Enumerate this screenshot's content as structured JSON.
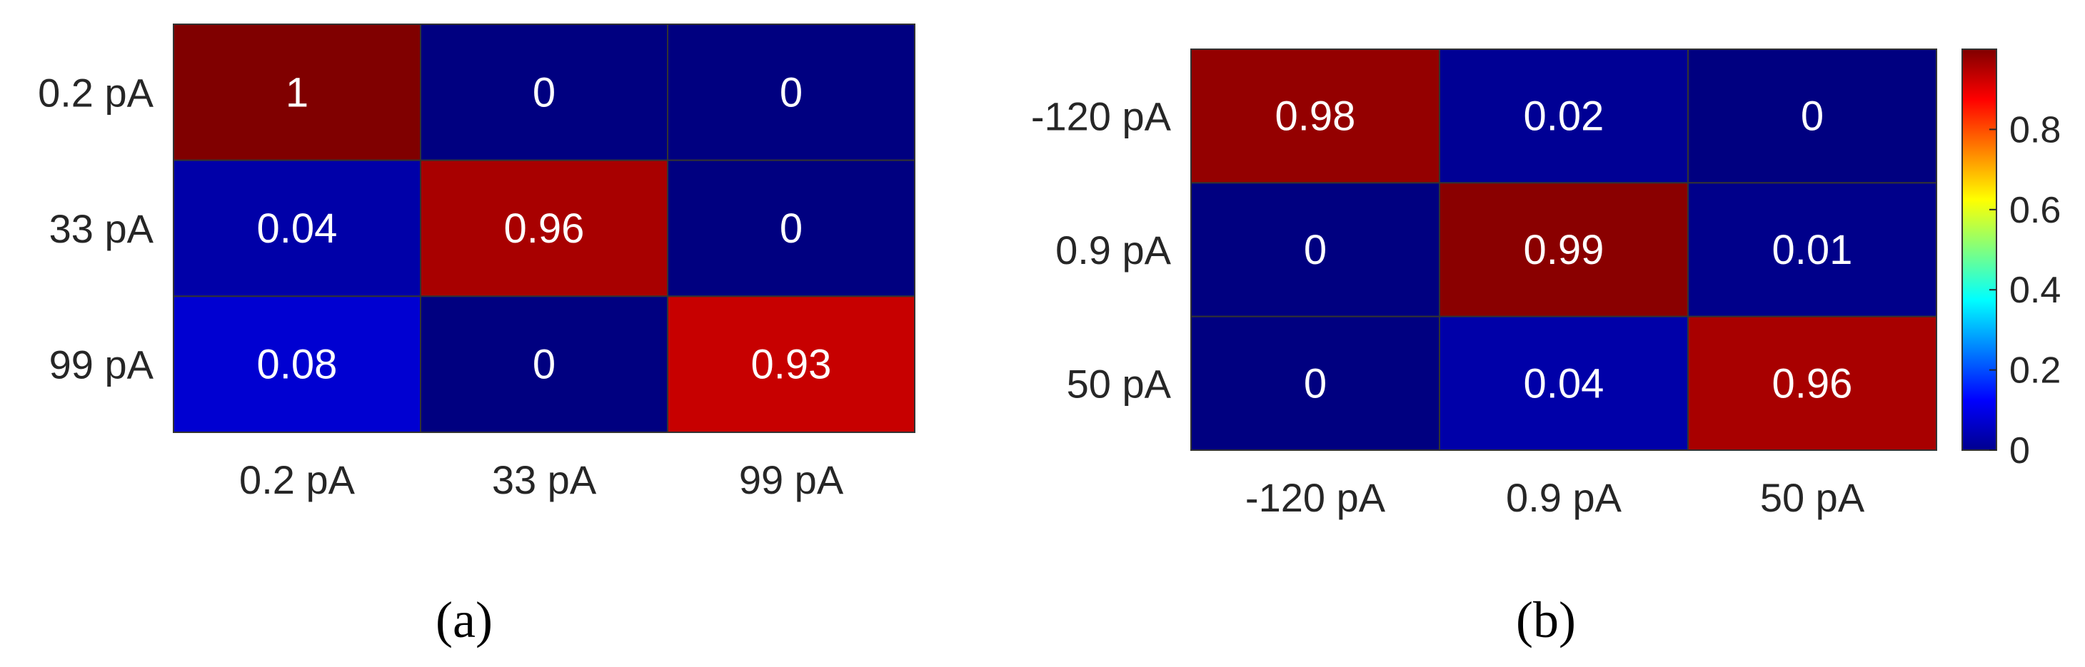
{
  "chart_data": [
    {
      "type": "heatmap",
      "panel_label": "(a)",
      "rows": [
        "0.2 pA",
        "33 pA",
        "99 pA"
      ],
      "columns": [
        "0.2 pA",
        "33 pA",
        "99 pA"
      ],
      "values": [
        [
          1,
          0,
          0
        ],
        [
          0.04,
          0.96,
          0
        ],
        [
          0.08,
          0,
          0.93
        ]
      ],
      "value_labels": [
        [
          "1",
          "0",
          "0"
        ],
        [
          "0.04",
          "0.96",
          "0"
        ],
        [
          "0.08",
          "0",
          "0.93"
        ]
      ],
      "colormap": "jet",
      "clim": [
        0,
        1
      ]
    },
    {
      "type": "heatmap",
      "panel_label": "(b)",
      "rows": [
        "-120 pA",
        "0.9 pA",
        "50 pA"
      ],
      "columns": [
        "-120 pA",
        "0.9 pA",
        "50 pA"
      ],
      "values": [
        [
          0.98,
          0.02,
          0
        ],
        [
          0,
          0.99,
          0.01
        ],
        [
          0,
          0.04,
          0.96
        ]
      ],
      "value_labels": [
        [
          "0.98",
          "0.02",
          "0"
        ],
        [
          "0",
          "0.99",
          "0.01"
        ],
        [
          "0",
          "0.04",
          "0.96"
        ]
      ],
      "colormap": "jet",
      "clim": [
        0,
        1
      ],
      "colorbar": {
        "ticks": [
          "0",
          "0.2",
          "0.4",
          "0.6",
          "0.8"
        ],
        "tick_values": [
          0,
          0.2,
          0.4,
          0.6,
          0.8
        ],
        "range": [
          0,
          1
        ]
      }
    }
  ],
  "colors": {
    "grid": "#333333",
    "text_on_cell": "#ffffff",
    "tick_text": "#262626"
  }
}
